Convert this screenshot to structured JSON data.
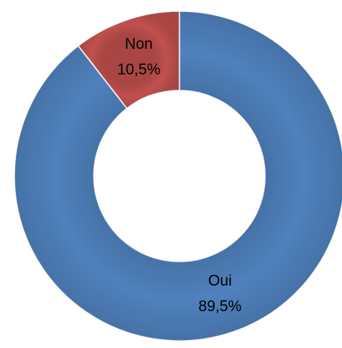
{
  "chart_data": {
    "type": "donut",
    "categories": [
      "Oui",
      "Non"
    ],
    "values": [
      89.5,
      10.5
    ],
    "value_labels": [
      "89,5%",
      "10,5%"
    ],
    "colors": [
      "#4f81bd",
      "#c0504d"
    ]
  }
}
